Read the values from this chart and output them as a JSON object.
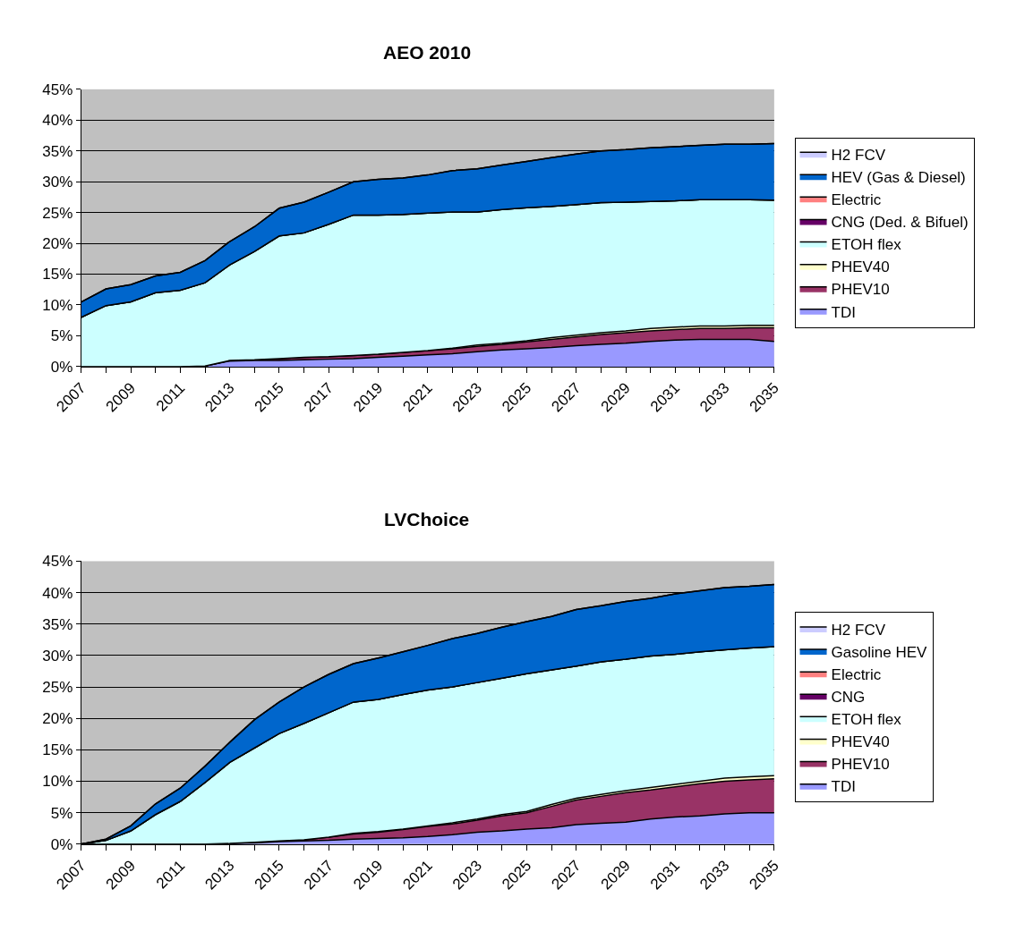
{
  "chart_data": [
    {
      "type": "area",
      "title": "AEO 2010",
      "stacked": true,
      "legend": "right",
      "grid": "y",
      "x": [
        2007,
        2008,
        2009,
        2010,
        2011,
        2012,
        2013,
        2014,
        2015,
        2016,
        2017,
        2018,
        2019,
        2020,
        2021,
        2022,
        2023,
        2024,
        2025,
        2026,
        2027,
        2028,
        2029,
        2030,
        2031,
        2032,
        2033,
        2034,
        2035
      ],
      "xlim": [
        2007,
        2035
      ],
      "xticks": [
        2007,
        2009,
        2011,
        2013,
        2015,
        2017,
        2019,
        2021,
        2023,
        2025,
        2027,
        2029,
        2031,
        2033,
        2035
      ],
      "ylim": [
        0,
        45
      ],
      "yticks": [
        {
          "value": 0,
          "label": "0%"
        },
        {
          "value": 5,
          "label": "5%"
        },
        {
          "value": 10,
          "label": "10%"
        },
        {
          "value": 15,
          "label": "15%"
        },
        {
          "value": 20,
          "label": "20%"
        },
        {
          "value": 25,
          "label": "25%"
        },
        {
          "value": 30,
          "label": "30%"
        },
        {
          "value": 35,
          "label": "35%"
        },
        {
          "value": 40,
          "label": "40%"
        },
        {
          "value": 45,
          "label": "45%"
        }
      ],
      "series": [
        {
          "name": "TDI",
          "color": "#9999ff",
          "values": [
            0,
            0,
            0,
            0,
            0,
            0.1,
            0.9,
            1.0,
            1.0,
            1.1,
            1.2,
            1.3,
            1.5,
            1.7,
            1.9,
            2.1,
            2.4,
            2.7,
            2.9,
            3.1,
            3.4,
            3.6,
            3.8,
            4.1,
            4.3,
            4.4,
            4.4,
            4.4,
            4.1
          ]
        },
        {
          "name": "PHEV10",
          "color": "#993366",
          "values": [
            0,
            0,
            0,
            0,
            0,
            0,
            0.1,
            0.1,
            0.3,
            0.4,
            0.4,
            0.5,
            0.5,
            0.6,
            0.7,
            0.8,
            0.9,
            0.9,
            1.1,
            1.3,
            1.4,
            1.6,
            1.7,
            1.7,
            1.7,
            1.8,
            1.8,
            1.9,
            2.2
          ]
        },
        {
          "name": "PHEV40",
          "color": "#ffffcc",
          "values": [
            0,
            0,
            0,
            0,
            0,
            0,
            0,
            0,
            0,
            0,
            0,
            0,
            0,
            0,
            0,
            0.1,
            0.2,
            0.2,
            0.2,
            0.3,
            0.3,
            0.3,
            0.3,
            0.4,
            0.4,
            0.4,
            0.4,
            0.4,
            0.4
          ]
        },
        {
          "name": "ETOH flex",
          "color": "#ccffff",
          "values": [
            8.0,
            9.9,
            10.5,
            12.0,
            12.4,
            13.5,
            15.5,
            17.6,
            19.9,
            20.2,
            21.5,
            22.8,
            22.6,
            22.4,
            22.3,
            22.1,
            21.6,
            21.7,
            21.6,
            21.3,
            21.2,
            21.1,
            20.9,
            20.6,
            20.5,
            20.5,
            20.5,
            20.4,
            20.3
          ]
        },
        {
          "name": "CNG (Ded. & Bifuel)",
          "color": "#660066",
          "values": [
            null,
            null,
            null,
            null,
            null,
            null,
            null,
            null,
            null,
            null,
            null,
            null,
            null,
            null,
            null,
            null,
            null,
            null,
            null,
            null,
            null,
            null,
            null,
            null,
            null,
            null,
            null,
            null,
            null
          ]
        },
        {
          "name": "Electric",
          "color": "#ff8080",
          "values": [
            null,
            null,
            null,
            null,
            null,
            null,
            null,
            null,
            null,
            null,
            null,
            null,
            null,
            null,
            null,
            null,
            null,
            null,
            null,
            null,
            null,
            null,
            null,
            null,
            null,
            null,
            null,
            null,
            null
          ]
        },
        {
          "name": "HEV (Gas & Diesel)",
          "color": "#0066cc",
          "values": [
            2.5,
            2.7,
            2.8,
            2.7,
            2.9,
            3.6,
            3.8,
            4.0,
            4.5,
            5.0,
            5.2,
            5.4,
            5.8,
            5.9,
            6.2,
            6.7,
            7.0,
            7.2,
            7.5,
            7.9,
            8.2,
            8.4,
            8.5,
            8.7,
            8.8,
            8.8,
            9.0,
            9.0,
            9.2
          ]
        },
        {
          "name": "H2 FCV",
          "color": "#ccccff",
          "values": [
            null,
            null,
            null,
            null,
            null,
            null,
            null,
            null,
            null,
            null,
            null,
            null,
            null,
            null,
            null,
            null,
            null,
            null,
            null,
            null,
            null,
            null,
            null,
            null,
            null,
            null,
            null,
            null,
            null
          ]
        }
      ]
    },
    {
      "type": "area",
      "title": "LVChoice",
      "stacked": true,
      "legend": "right",
      "grid": "y",
      "x": [
        2007,
        2008,
        2009,
        2010,
        2011,
        2012,
        2013,
        2014,
        2015,
        2016,
        2017,
        2018,
        2019,
        2020,
        2021,
        2022,
        2023,
        2024,
        2025,
        2026,
        2027,
        2028,
        2029,
        2030,
        2031,
        2032,
        2033,
        2034,
        2035
      ],
      "xlim": [
        2007,
        2035
      ],
      "xticks": [
        2007,
        2009,
        2011,
        2013,
        2015,
        2017,
        2019,
        2021,
        2023,
        2025,
        2027,
        2029,
        2031,
        2033,
        2035
      ],
      "ylim": [
        0,
        45
      ],
      "yticks": [
        {
          "value": 0,
          "label": "0%"
        },
        {
          "value": 5,
          "label": "5%"
        },
        {
          "value": 10,
          "label": "10%"
        },
        {
          "value": 15,
          "label": "15%"
        },
        {
          "value": 20,
          "label": "20%"
        },
        {
          "value": 25,
          "label": "25%"
        },
        {
          "value": 30,
          "label": "30%"
        },
        {
          "value": 35,
          "label": "35%"
        },
        {
          "value": 40,
          "label": "40%"
        },
        {
          "value": 45,
          "label": "45%"
        }
      ],
      "series": [
        {
          "name": "TDI",
          "color": "#9999ff",
          "values": [
            0,
            0,
            0,
            0,
            0,
            0,
            0.1,
            0.2,
            0.4,
            0.5,
            0.6,
            0.8,
            0.9,
            1.0,
            1.2,
            1.5,
            1.9,
            2.1,
            2.4,
            2.6,
            3.1,
            3.3,
            3.5,
            4.0,
            4.3,
            4.5,
            4.8,
            5.0,
            5.0
          ]
        },
        {
          "name": "PHEV10",
          "color": "#993366",
          "values": [
            0,
            0,
            0,
            0,
            0,
            0,
            0,
            0.1,
            0.1,
            0.2,
            0.5,
            0.8,
            1.0,
            1.3,
            1.6,
            1.7,
            1.9,
            2.4,
            2.6,
            3.4,
            3.9,
            4.3,
            4.7,
            4.6,
            4.8,
            5.1,
            5.2,
            5.2,
            5.4
          ]
        },
        {
          "name": "PHEV40",
          "color": "#ffffcc",
          "values": [
            0,
            0,
            0,
            0,
            0,
            0,
            0,
            0,
            0,
            0,
            0,
            0.1,
            0.1,
            0.1,
            0.1,
            0.2,
            0.2,
            0.2,
            0.2,
            0.3,
            0.3,
            0.3,
            0.3,
            0.4,
            0.4,
            0.4,
            0.5,
            0.5,
            0.5
          ]
        },
        {
          "name": "ETOH flex",
          "color": "#ccffff",
          "values": [
            0,
            0.6,
            2.1,
            4.7,
            6.8,
            9.8,
            12.9,
            15.0,
            17.1,
            18.5,
            19.8,
            20.9,
            21.0,
            21.4,
            21.6,
            21.6,
            21.7,
            21.7,
            21.9,
            21.4,
            21.0,
            21.1,
            20.9,
            20.9,
            20.7,
            20.6,
            20.4,
            20.5,
            20.5
          ]
        },
        {
          "name": "CNG",
          "color": "#660066",
          "values": [
            null,
            null,
            null,
            null,
            null,
            null,
            null,
            null,
            null,
            null,
            null,
            null,
            null,
            null,
            null,
            null,
            null,
            null,
            null,
            null,
            null,
            null,
            null,
            null,
            null,
            null,
            null,
            null,
            null
          ]
        },
        {
          "name": "Electric",
          "color": "#ff8080",
          "values": [
            null,
            null,
            null,
            null,
            null,
            null,
            null,
            null,
            null,
            null,
            null,
            null,
            null,
            null,
            null,
            null,
            null,
            null,
            null,
            null,
            null,
            null,
            null,
            null,
            null,
            null,
            null,
            null,
            null
          ]
        },
        {
          "name": "Gasoline HEV",
          "color": "#0066cc",
          "values": [
            0,
            0.2,
            0.8,
            1.7,
            2.1,
            2.6,
            3.2,
            4.5,
            5.0,
            5.8,
            6.1,
            6.1,
            6.6,
            6.8,
            7.1,
            7.7,
            7.8,
            8.1,
            8.3,
            8.5,
            9.0,
            8.9,
            9.2,
            9.2,
            9.6,
            9.7,
            9.9,
            9.8,
            9.9
          ]
        },
        {
          "name": "H2 FCV",
          "color": "#ccccff",
          "values": [
            null,
            null,
            null,
            null,
            null,
            null,
            null,
            null,
            null,
            null,
            null,
            null,
            null,
            null,
            null,
            null,
            null,
            null,
            null,
            null,
            null,
            null,
            null,
            null,
            null,
            null,
            null,
            null,
            null
          ]
        }
      ]
    }
  ]
}
